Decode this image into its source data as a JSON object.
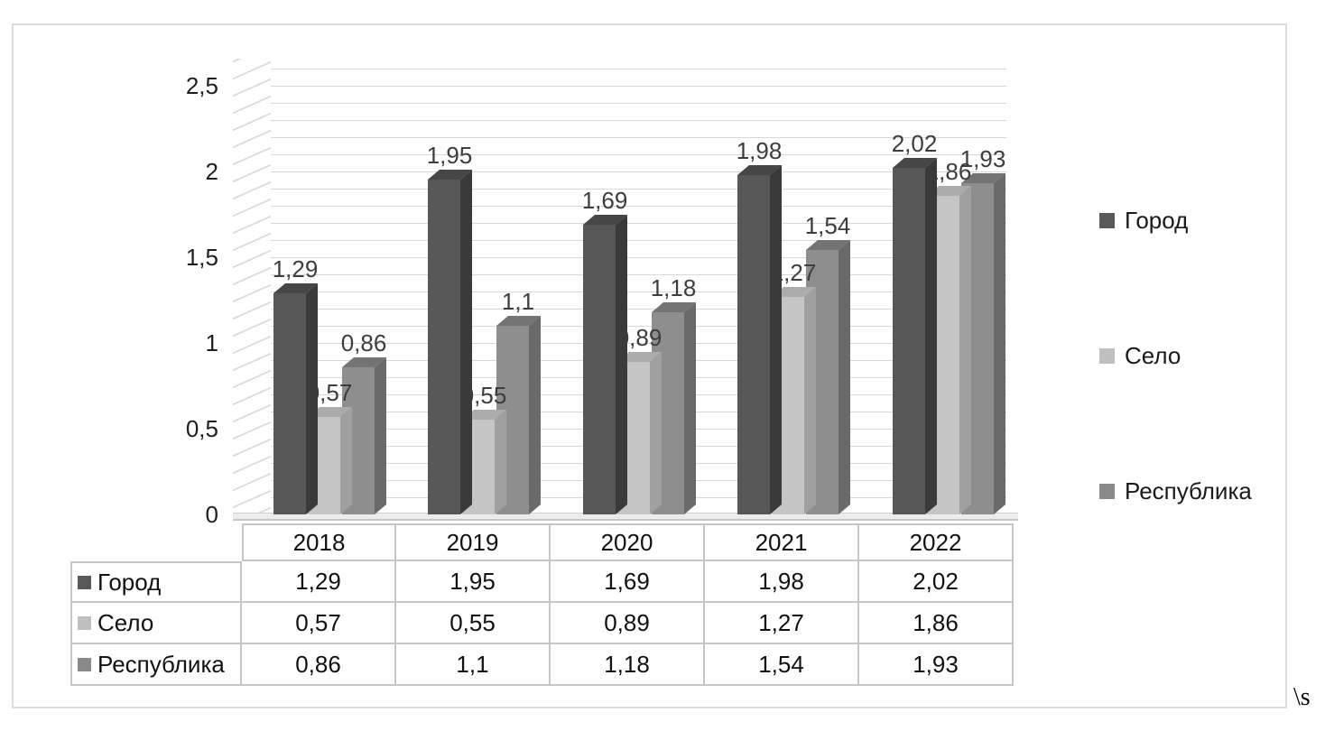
{
  "artifact": "\\s",
  "chart_data": {
    "type": "bar",
    "style": "3d-clustered-column",
    "title": "",
    "xlabel": "",
    "ylabel": "",
    "categories": [
      "2018",
      "2019",
      "2020",
      "2021",
      "2022"
    ],
    "series": [
      {
        "id": "gorod",
        "name": "Город",
        "values": [
          1.29,
          1.95,
          1.69,
          1.98,
          2.02
        ],
        "labels": [
          "1,29",
          "1,95",
          "1,69",
          "1,98",
          "2,02"
        ],
        "color_front": "#575757",
        "color_top": "#464646",
        "color_side": "#3a3a3a",
        "legend_color": "#595959"
      },
      {
        "id": "selo",
        "name": "Село",
        "values": [
          0.57,
          0.55,
          0.89,
          1.27,
          1.86
        ],
        "labels": [
          "0,57",
          "0,55",
          "0,89",
          "1,27",
          "1,86"
        ],
        "color_front": "#c5c5c5",
        "color_top": "#acacac",
        "color_side": "#a0a0a0",
        "legend_color": "#bfbfbf"
      },
      {
        "id": "respublika",
        "name": "Республика",
        "values": [
          0.86,
          1.1,
          1.18,
          1.54,
          1.93
        ],
        "labels": [
          "0,86",
          "1,1",
          "1,18",
          "1,54",
          "1,93"
        ],
        "color_front": "#8e8e8e",
        "color_top": "#747474",
        "color_side": "#6a6a6a",
        "legend_color": "#898989"
      }
    ],
    "y_axis": {
      "min": 0,
      "max": 2.5,
      "major_step": 0.5,
      "minor_step": 0.1,
      "ticks": [
        {
          "value": 0,
          "label": "0"
        },
        {
          "value": 0.5,
          "label": "0,5"
        },
        {
          "value": 1,
          "label": "1"
        },
        {
          "value": 1.5,
          "label": "1,5"
        },
        {
          "value": 2,
          "label": "2"
        },
        {
          "value": 2.5,
          "label": "2,5"
        }
      ]
    },
    "legend_position": "right",
    "gridlines": true,
    "data_table_shown": true
  }
}
